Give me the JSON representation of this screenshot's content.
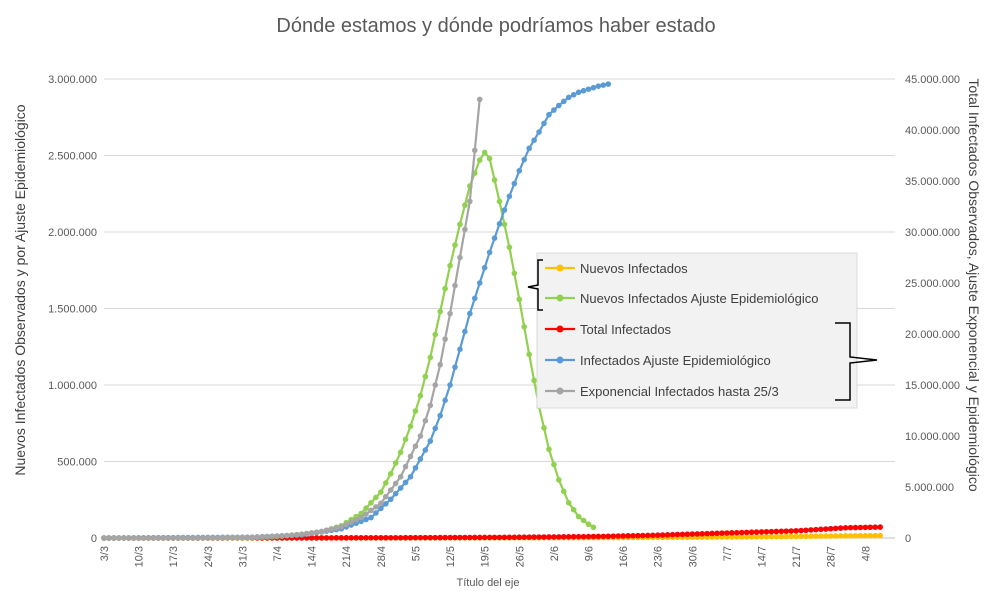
{
  "chart_data": {
    "type": "line",
    "title": "Dónde estamos y dónde podríamos haber estado",
    "xlabel": "Título del eje",
    "ylabel_left": "Nuevos Infectados Observados y por Ajuste Epidemiológico",
    "ylabel_right": "Total Infectados Observados, Ajuste Exponencial y Epidemiológico",
    "x_categories": [
      "3/3",
      "10/3",
      "17/3",
      "24/3",
      "31/3",
      "7/4",
      "14/4",
      "21/4",
      "28/4",
      "5/5",
      "12/5",
      "19/5",
      "26/5",
      "2/6",
      "9/6",
      "16/6",
      "23/6",
      "30/6",
      "7/7",
      "14/7",
      "21/7",
      "28/7",
      "4/8"
    ],
    "x_start_date": "2020-03-03",
    "y_left_ticks": [
      "0",
      "500.000",
      "1.000.000",
      "1.500.000",
      "2.000.000",
      "2.500.000",
      "3.000.000"
    ],
    "y_right_ticks": [
      "0",
      "5.000.000",
      "10.000.000",
      "15.000.000",
      "20.000.000",
      "25.000.000",
      "30.000.000",
      "35.000.000",
      "40.000.000",
      "45.000.000"
    ],
    "ylim_left": [
      0,
      3000000
    ],
    "ylim_right": [
      0,
      45000000
    ],
    "grid": true,
    "legend_position": "center-right",
    "series": [
      {
        "name": "Nuevos Infectados",
        "axis": "left",
        "color": "#FFC000",
        "points": [
          [
            0,
            0
          ],
          [
            20,
            0
          ],
          [
            40,
            300
          ],
          [
            60,
            800
          ],
          [
            80,
            1500
          ],
          [
            100,
            2500
          ],
          [
            110,
            3500
          ],
          [
            120,
            5000
          ],
          [
            130,
            7000
          ],
          [
            140,
            10000
          ],
          [
            150,
            14000
          ],
          [
            157,
            16000
          ]
        ]
      },
      {
        "name": "Nuevos Infectados Ajuste Epidemiológico",
        "axis": "left",
        "color": "#92D050",
        "points": [
          [
            0,
            0
          ],
          [
            10,
            0
          ],
          [
            20,
            500
          ],
          [
            30,
            2000
          ],
          [
            35,
            10000
          ],
          [
            40,
            25000
          ],
          [
            44,
            40000
          ],
          [
            48,
            80000
          ],
          [
            52,
            160000
          ],
          [
            56,
            300000
          ],
          [
            58,
            420000
          ],
          [
            60,
            560000
          ],
          [
            62,
            730000
          ],
          [
            64,
            930000
          ],
          [
            66,
            1180000
          ],
          [
            68,
            1480000
          ],
          [
            70,
            1780000
          ],
          [
            72,
            2050000
          ],
          [
            74,
            2300000
          ],
          [
            76,
            2470000
          ],
          [
            77,
            2520000
          ],
          [
            78,
            2480000
          ],
          [
            80,
            2200000
          ],
          [
            82,
            1900000
          ],
          [
            84,
            1560000
          ],
          [
            86,
            1200000
          ],
          [
            88,
            860000
          ],
          [
            90,
            580000
          ],
          [
            92,
            380000
          ],
          [
            94,
            230000
          ],
          [
            96,
            140000
          ],
          [
            98,
            90000
          ],
          [
            99,
            70000
          ]
        ]
      },
      {
        "name": "Total Infectados",
        "axis": "right",
        "color": "#FF0000",
        "points": [
          [
            0,
            0
          ],
          [
            20,
            3000
          ],
          [
            40,
            8000
          ],
          [
            60,
            25000
          ],
          [
            80,
            60000
          ],
          [
            90,
            100000
          ],
          [
            100,
            150000
          ],
          [
            110,
            250000
          ],
          [
            120,
            400000
          ],
          [
            130,
            550000
          ],
          [
            140,
            700000
          ],
          [
            145,
            850000
          ],
          [
            150,
            1000000
          ],
          [
            157,
            1070000
          ]
        ]
      },
      {
        "name": "Infectados Ajuste Epidemiológico",
        "axis": "right",
        "color": "#5B9BD5",
        "points": [
          [
            0,
            0
          ],
          [
            30,
            80000
          ],
          [
            40,
            300000
          ],
          [
            48,
            900000
          ],
          [
            54,
            2000000
          ],
          [
            58,
            3800000
          ],
          [
            62,
            6000000
          ],
          [
            66,
            9500000
          ],
          [
            68,
            12000000
          ],
          [
            70,
            15000000
          ],
          [
            72,
            18500000
          ],
          [
            74,
            22000000
          ],
          [
            76,
            25000000
          ],
          [
            78,
            28000000
          ],
          [
            80,
            30800000
          ],
          [
            82,
            33500000
          ],
          [
            84,
            36000000
          ],
          [
            86,
            38200000
          ],
          [
            88,
            39800000
          ],
          [
            90,
            41500000
          ],
          [
            92,
            42400000
          ],
          [
            94,
            43200000
          ],
          [
            96,
            43700000
          ],
          [
            98,
            44000000
          ],
          [
            100,
            44300000
          ],
          [
            102,
            44500000
          ]
        ]
      },
      {
        "name": "Exponencial Infectados hasta 25/3",
        "axis": "right",
        "color": "#A5A5A5",
        "points": [
          [
            0,
            0
          ],
          [
            20,
            6000
          ],
          [
            30,
            80000
          ],
          [
            36,
            200000
          ],
          [
            40,
            360000
          ],
          [
            44,
            640000
          ],
          [
            48,
            1100000
          ],
          [
            52,
            2000000
          ],
          [
            56,
            3400000
          ],
          [
            60,
            6000000
          ],
          [
            64,
            10000000
          ],
          [
            66,
            13000000
          ],
          [
            68,
            17000000
          ],
          [
            70,
            22000000
          ],
          [
            72,
            27500000
          ],
          [
            74,
            33000000
          ],
          [
            75,
            38000000
          ],
          [
            76,
            43000000
          ],
          [
            77,
            47000000
          ]
        ]
      }
    ]
  }
}
